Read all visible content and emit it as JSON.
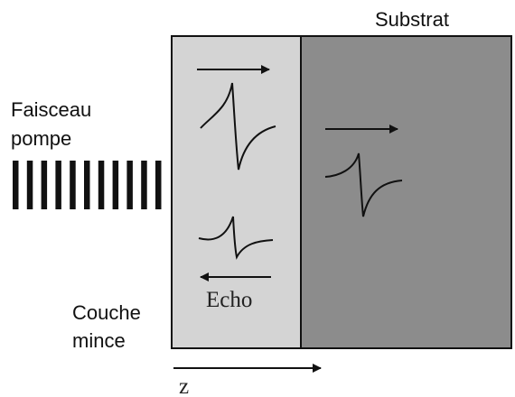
{
  "labels": {
    "substrate": "Substrat",
    "pump": [
      "Faisceau",
      "pompe"
    ],
    "layer": [
      "Couche",
      "mince"
    ],
    "echo": "Echo",
    "axis": "z"
  }
}
